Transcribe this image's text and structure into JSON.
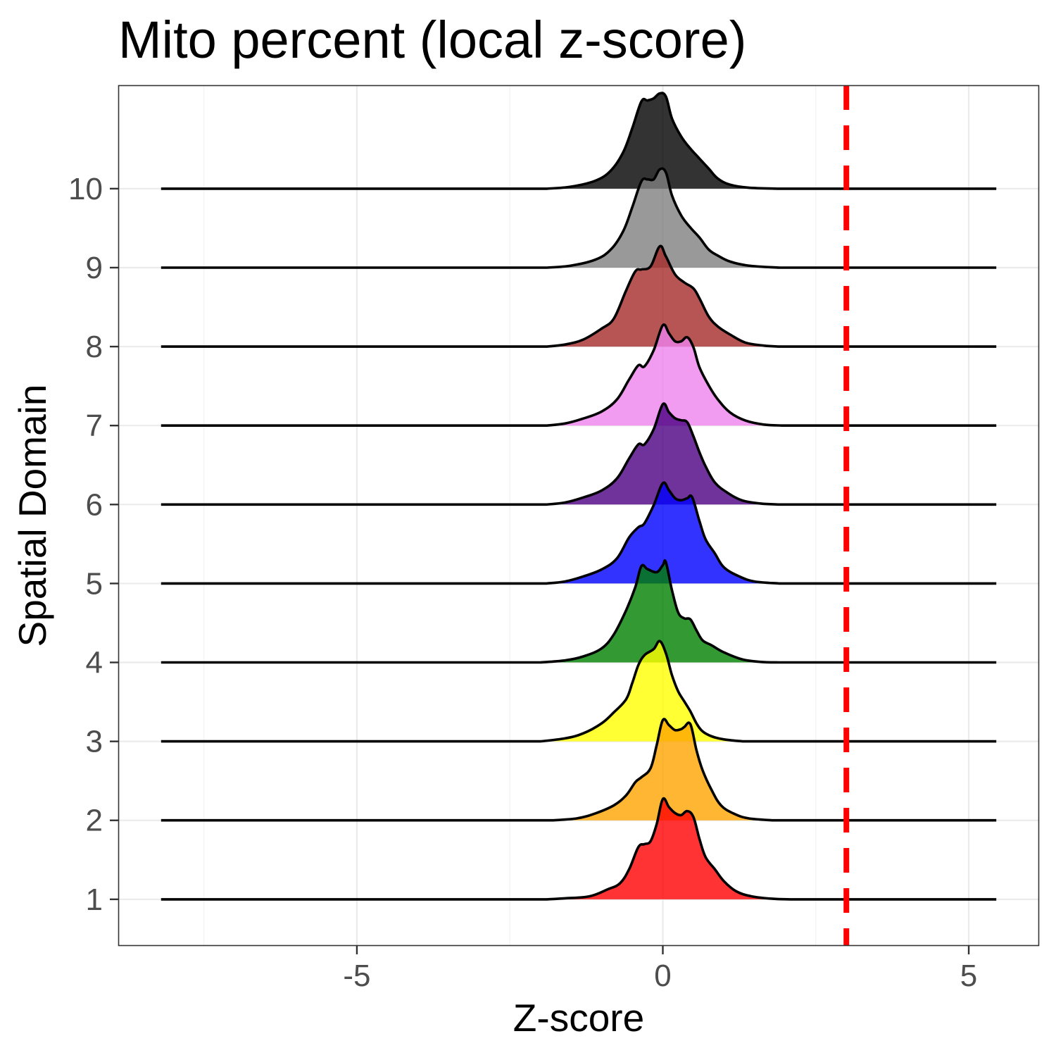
{
  "chart_data": {
    "type": "ridgeline",
    "title": "Mito percent  (local z-score)",
    "xlabel": "Z-score",
    "ylabel": "Spatial Domain",
    "xlim": [
      -8.9,
      6.15
    ],
    "x_ticks": [
      -5,
      0,
      5
    ],
    "x_tick_labels": [
      "-5",
      "0",
      "5"
    ],
    "x_minor_grid": [
      -7.5,
      -2.5,
      2.5
    ],
    "ylim": [
      0.41,
      11.31
    ],
    "grid": true,
    "x_range": [
      -8.2,
      5.45
    ],
    "threshold": {
      "value": 3,
      "color": "#FF0000",
      "style": "dashed"
    },
    "ridge_scale_units": 1.27,
    "series": [
      {
        "domain": "1",
        "color": "#FF0000",
        "points": [
          [
            -1.9,
            0
          ],
          [
            -1.6,
            0.01
          ],
          [
            -1.2,
            0.03
          ],
          [
            -0.9,
            0.1
          ],
          [
            -0.7,
            0.16
          ],
          [
            -0.55,
            0.3
          ],
          [
            -0.4,
            0.52
          ],
          [
            -0.3,
            0.55
          ],
          [
            -0.2,
            0.58
          ],
          [
            -0.1,
            0.75
          ],
          [
            0.0,
            1.0
          ],
          [
            0.1,
            0.92
          ],
          [
            0.2,
            0.86
          ],
          [
            0.3,
            0.84
          ],
          [
            0.4,
            0.88
          ],
          [
            0.5,
            0.82
          ],
          [
            0.6,
            0.6
          ],
          [
            0.7,
            0.42
          ],
          [
            0.85,
            0.3
          ],
          [
            1.0,
            0.18
          ],
          [
            1.2,
            0.08
          ],
          [
            1.45,
            0.03
          ],
          [
            1.8,
            0.005
          ],
          [
            2.1,
            0
          ]
        ]
      },
      {
        "domain": "2",
        "color": "#FFA500",
        "points": [
          [
            -1.8,
            0
          ],
          [
            -1.4,
            0.02
          ],
          [
            -1.1,
            0.07
          ],
          [
            -0.8,
            0.15
          ],
          [
            -0.6,
            0.25
          ],
          [
            -0.45,
            0.38
          ],
          [
            -0.35,
            0.43
          ],
          [
            -0.2,
            0.52
          ],
          [
            -0.1,
            0.75
          ],
          [
            0.0,
            1.0
          ],
          [
            0.1,
            0.95
          ],
          [
            0.2,
            0.9
          ],
          [
            0.3,
            0.91
          ],
          [
            0.35,
            0.93
          ],
          [
            0.45,
            0.96
          ],
          [
            0.55,
            0.7
          ],
          [
            0.65,
            0.5
          ],
          [
            0.8,
            0.3
          ],
          [
            0.95,
            0.15
          ],
          [
            1.15,
            0.07
          ],
          [
            1.4,
            0.02
          ],
          [
            1.8,
            0
          ]
        ]
      },
      {
        "domain": "3",
        "color": "#FFFF00",
        "points": [
          [
            -2.0,
            0
          ],
          [
            -1.6,
            0.03
          ],
          [
            -1.3,
            0.08
          ],
          [
            -1.0,
            0.18
          ],
          [
            -0.8,
            0.29
          ],
          [
            -0.6,
            0.42
          ],
          [
            -0.5,
            0.58
          ],
          [
            -0.4,
            0.76
          ],
          [
            -0.3,
            0.86
          ],
          [
            -0.15,
            0.92
          ],
          [
            -0.05,
            1.0
          ],
          [
            0.05,
            0.88
          ],
          [
            0.15,
            0.66
          ],
          [
            0.25,
            0.5
          ],
          [
            0.35,
            0.4
          ],
          [
            0.45,
            0.3
          ],
          [
            0.55,
            0.18
          ],
          [
            0.65,
            0.1
          ],
          [
            0.8,
            0.05
          ],
          [
            1.0,
            0.02
          ],
          [
            1.3,
            0
          ]
        ]
      },
      {
        "domain": "4",
        "color": "#008000",
        "points": [
          [
            -2.0,
            0
          ],
          [
            -1.6,
            0.02
          ],
          [
            -1.3,
            0.06
          ],
          [
            -1.0,
            0.14
          ],
          [
            -0.8,
            0.28
          ],
          [
            -0.6,
            0.52
          ],
          [
            -0.45,
            0.75
          ],
          [
            -0.35,
            0.96
          ],
          [
            -0.25,
            0.93
          ],
          [
            -0.1,
            0.9
          ],
          [
            0.0,
            0.97
          ],
          [
            0.05,
            1.0
          ],
          [
            0.15,
            0.72
          ],
          [
            0.25,
            0.5
          ],
          [
            0.35,
            0.44
          ],
          [
            0.45,
            0.43
          ],
          [
            0.55,
            0.32
          ],
          [
            0.65,
            0.22
          ],
          [
            0.8,
            0.17
          ],
          [
            1.0,
            0.1
          ],
          [
            1.3,
            0.03
          ],
          [
            1.6,
            0.005
          ],
          [
            1.9,
            0
          ]
        ]
      },
      {
        "domain": "5",
        "color": "#0000FF",
        "points": [
          [
            -1.9,
            0
          ],
          [
            -1.6,
            0.02
          ],
          [
            -1.3,
            0.07
          ],
          [
            -1.0,
            0.14
          ],
          [
            -0.75,
            0.25
          ],
          [
            -0.55,
            0.46
          ],
          [
            -0.4,
            0.56
          ],
          [
            -0.3,
            0.6
          ],
          [
            -0.15,
            0.78
          ],
          [
            0.0,
            1.0
          ],
          [
            0.1,
            0.93
          ],
          [
            0.2,
            0.85
          ],
          [
            0.3,
            0.83
          ],
          [
            0.4,
            0.85
          ],
          [
            0.48,
            0.86
          ],
          [
            0.6,
            0.62
          ],
          [
            0.7,
            0.44
          ],
          [
            0.85,
            0.3
          ],
          [
            1.0,
            0.16
          ],
          [
            1.25,
            0.07
          ],
          [
            1.5,
            0.02
          ],
          [
            1.9,
            0
          ]
        ]
      },
      {
        "domain": "6",
        "color": "#4B0082",
        "points": [
          [
            -1.9,
            0
          ],
          [
            -1.6,
            0.02
          ],
          [
            -1.3,
            0.07
          ],
          [
            -1.0,
            0.14
          ],
          [
            -0.75,
            0.26
          ],
          [
            -0.55,
            0.46
          ],
          [
            -0.4,
            0.6
          ],
          [
            -0.3,
            0.6
          ],
          [
            -0.15,
            0.75
          ],
          [
            0.0,
            1.0
          ],
          [
            0.1,
            0.92
          ],
          [
            0.2,
            0.86
          ],
          [
            0.3,
            0.84
          ],
          [
            0.4,
            0.82
          ],
          [
            0.5,
            0.68
          ],
          [
            0.6,
            0.52
          ],
          [
            0.7,
            0.38
          ],
          [
            0.85,
            0.22
          ],
          [
            1.05,
            0.12
          ],
          [
            1.3,
            0.04
          ],
          [
            1.6,
            0.01
          ],
          [
            1.9,
            0
          ]
        ]
      },
      {
        "domain": "7",
        "color": "#EE82EE",
        "points": [
          [
            -1.9,
            0
          ],
          [
            -1.6,
            0.02
          ],
          [
            -1.3,
            0.07
          ],
          [
            -1.0,
            0.14
          ],
          [
            -0.75,
            0.26
          ],
          [
            -0.55,
            0.46
          ],
          [
            -0.4,
            0.6
          ],
          [
            -0.3,
            0.59
          ],
          [
            -0.15,
            0.75
          ],
          [
            0.0,
            1.0
          ],
          [
            0.1,
            0.92
          ],
          [
            0.2,
            0.84
          ],
          [
            0.3,
            0.84
          ],
          [
            0.4,
            0.88
          ],
          [
            0.5,
            0.78
          ],
          [
            0.6,
            0.58
          ],
          [
            0.75,
            0.4
          ],
          [
            0.9,
            0.26
          ],
          [
            1.1,
            0.13
          ],
          [
            1.35,
            0.05
          ],
          [
            1.65,
            0.01
          ],
          [
            1.95,
            0
          ]
        ]
      },
      {
        "domain": "8",
        "color": "#A52A2A",
        "points": [
          [
            -1.9,
            0
          ],
          [
            -1.6,
            0.02
          ],
          [
            -1.3,
            0.07
          ],
          [
            -1.0,
            0.18
          ],
          [
            -0.8,
            0.28
          ],
          [
            -0.6,
            0.56
          ],
          [
            -0.45,
            0.75
          ],
          [
            -0.35,
            0.77
          ],
          [
            -0.2,
            0.8
          ],
          [
            -0.05,
            1.0
          ],
          [
            0.05,
            0.9
          ],
          [
            0.2,
            0.72
          ],
          [
            0.35,
            0.64
          ],
          [
            0.5,
            0.58
          ],
          [
            0.6,
            0.48
          ],
          [
            0.75,
            0.3
          ],
          [
            0.9,
            0.2
          ],
          [
            1.1,
            0.12
          ],
          [
            1.35,
            0.04
          ],
          [
            1.65,
            0.01
          ],
          [
            1.9,
            0
          ]
        ]
      },
      {
        "domain": "9",
        "color": "#808080",
        "points": [
          [
            -1.9,
            0
          ],
          [
            -1.5,
            0.02
          ],
          [
            -1.1,
            0.08
          ],
          [
            -0.85,
            0.18
          ],
          [
            -0.65,
            0.36
          ],
          [
            -0.5,
            0.6
          ],
          [
            -0.35,
            0.86
          ],
          [
            -0.25,
            0.88
          ],
          [
            -0.15,
            0.88
          ],
          [
            -0.05,
            0.98
          ],
          [
            0.05,
            0.95
          ],
          [
            0.15,
            0.72
          ],
          [
            0.3,
            0.52
          ],
          [
            0.45,
            0.4
          ],
          [
            0.6,
            0.3
          ],
          [
            0.75,
            0.18
          ],
          [
            0.9,
            0.12
          ],
          [
            1.1,
            0.06
          ],
          [
            1.4,
            0.02
          ],
          [
            1.9,
            0
          ]
        ]
      },
      {
        "domain": "10",
        "color": "#000000",
        "points": [
          [
            -1.9,
            0
          ],
          [
            -1.5,
            0.02
          ],
          [
            -1.1,
            0.08
          ],
          [
            -0.85,
            0.18
          ],
          [
            -0.65,
            0.36
          ],
          [
            -0.5,
            0.6
          ],
          [
            -0.35,
            0.87
          ],
          [
            -0.25,
            0.88
          ],
          [
            -0.15,
            0.9
          ],
          [
            -0.05,
            0.95
          ],
          [
            0.05,
            0.92
          ],
          [
            0.15,
            0.7
          ],
          [
            0.3,
            0.52
          ],
          [
            0.45,
            0.4
          ],
          [
            0.6,
            0.3
          ],
          [
            0.75,
            0.2
          ],
          [
            0.9,
            0.1
          ],
          [
            1.1,
            0.04
          ],
          [
            1.4,
            0.01
          ],
          [
            1.9,
            0
          ]
        ]
      }
    ]
  }
}
